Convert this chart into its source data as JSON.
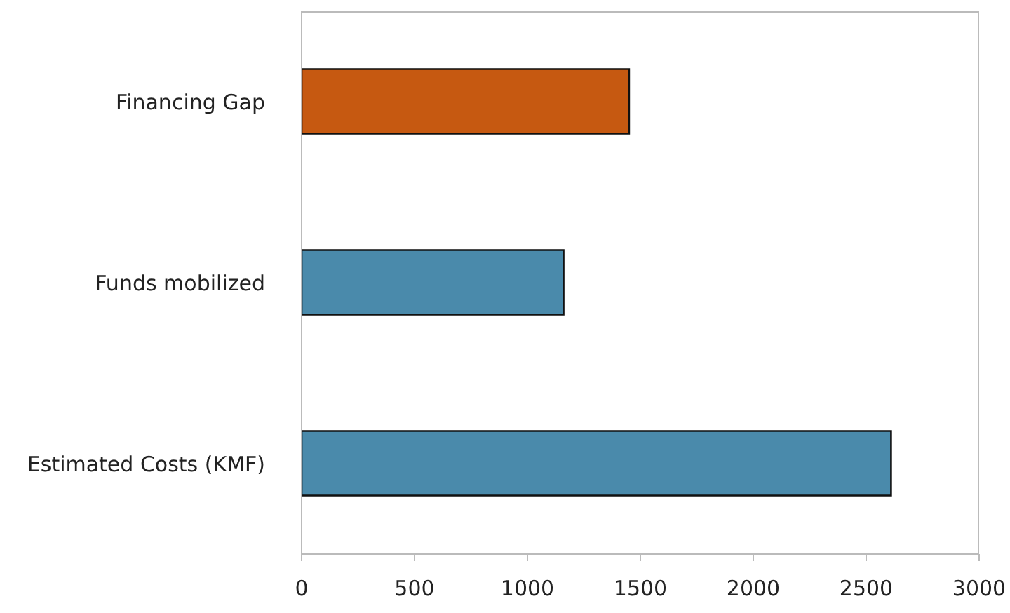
{
  "chart_data": {
    "type": "bar",
    "orientation": "horizontal",
    "categories": [
      "Financing Gap",
      "Funds mobilized",
      "Estimated Costs (KMF)"
    ],
    "values": [
      1450,
      1160,
      2610
    ],
    "colors": [
      "#c65911",
      "#4a8aab",
      "#4a8aab"
    ],
    "xlim": [
      0,
      3000
    ],
    "xticks": [
      0,
      500,
      1000,
      1500,
      2000,
      2500,
      3000
    ],
    "grid": false
  }
}
